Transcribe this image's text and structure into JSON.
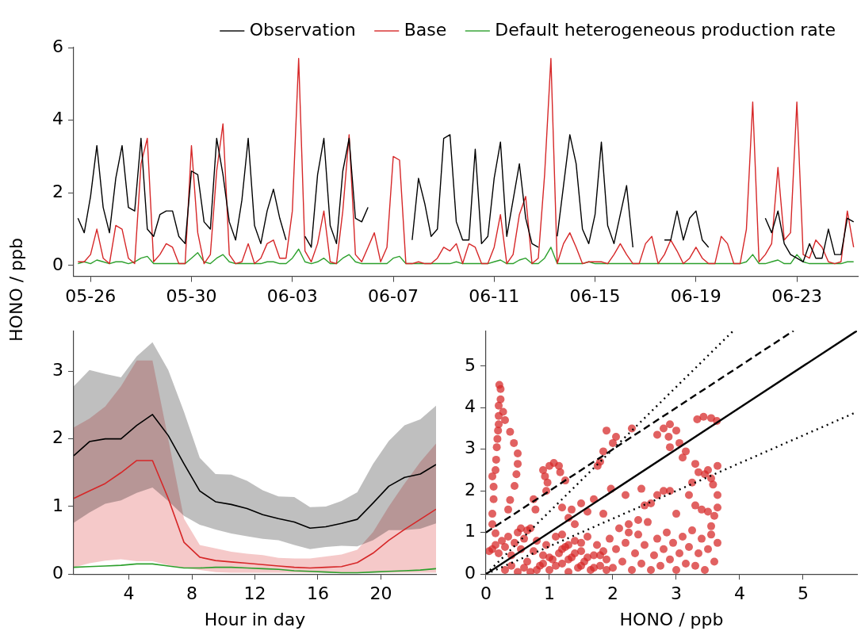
{
  "chart_data": [
    {
      "type": "line",
      "ylabel": "HONO / ppb",
      "legend": "top",
      "x": [
        "--05-25T12:00",
        "--05-25T18:00",
        "--05-26T00:00",
        "--05-26T06:00",
        "--05-26T12:00",
        "--05-26T18:00",
        "--05-27T00:00",
        "--05-27T06:00",
        "--05-27T12:00",
        "--05-27T18:00",
        "--05-28T00:00",
        "--05-28T06:00",
        "--05-28T12:00",
        "--05-28T18:00",
        "--05-29T00:00",
        "--05-29T06:00",
        "--05-29T12:00",
        "--05-29T18:00",
        "--05-30T00:00",
        "--05-30T06:00",
        "--05-30T12:00",
        "--05-30T18:00",
        "--05-31T00:00",
        "--05-31T06:00",
        "--05-31T12:00",
        "--05-31T18:00",
        "--06-01T00:00",
        "--06-01T06:00",
        "--06-01T12:00",
        "--06-01T18:00",
        "--06-02T00:00",
        "--06-02T06:00",
        "--06-02T12:00",
        "--06-02T18:00",
        "--06-03T00:00",
        "--06-03T06:00",
        "--06-03T12:00",
        "--06-03T18:00",
        "--06-04T00:00",
        "--06-04T06:00",
        "--06-04T12:00",
        "--06-04T18:00",
        "--06-05T00:00",
        "--06-05T06:00",
        "--06-05T12:00",
        "--06-05T18:00",
        "--06-06T00:00",
        "--06-06T06:00",
        "--06-06T12:00",
        "--06-06T18:00",
        "--06-07T00:00",
        "--06-07T06:00",
        "--06-07T12:00",
        "--06-07T18:00",
        "--06-08T00:00",
        "--06-08T06:00",
        "--06-08T12:00",
        "--06-08T18:00",
        "--06-09T00:00",
        "--06-09T06:00",
        "--06-09T12:00",
        "--06-09T18:00",
        "--06-10T00:00",
        "--06-10T06:00",
        "--06-10T12:00",
        "--06-10T18:00",
        "--06-11T00:00",
        "--06-11T06:00",
        "--06-11T12:00",
        "--06-11T18:00",
        "--06-12T00:00",
        "--06-12T06:00",
        "--06-12T12:00",
        "--06-12T18:00",
        "--06-13T00:00",
        "--06-13T06:00",
        "--06-13T12:00",
        "--06-13T18:00",
        "--06-14T00:00",
        "--06-14T06:00",
        "--06-14T12:00",
        "--06-14T18:00",
        "--06-15T00:00",
        "--06-15T06:00",
        "--06-15T12:00",
        "--06-15T18:00",
        "--06-16T00:00",
        "--06-16T06:00",
        "--06-16T12:00",
        "--06-16T18:00",
        "--06-17T00:00",
        "--06-17T06:00",
        "--06-17T12:00",
        "--06-17T18:00",
        "--06-18T00:00",
        "--06-18T06:00",
        "--06-18T12:00",
        "--06-18T18:00",
        "--06-19T00:00",
        "--06-19T06:00",
        "--06-19T12:00",
        "--06-19T18:00",
        "--06-20T00:00",
        "--06-20T06:00",
        "--06-20T12:00",
        "--06-20T18:00",
        "--06-21T00:00",
        "--06-21T06:00",
        "--06-21T12:00",
        "--06-21T18:00",
        "--06-22T00:00",
        "--06-22T06:00",
        "--06-22T12:00",
        "--06-22T18:00",
        "--06-23T00:00",
        "--06-23T06:00",
        "--06-23T12:00",
        "--06-23T18:00",
        "--06-24T00:00",
        "--06-24T06:00",
        "--06-24T12:00",
        "--06-24T18:00",
        "--06-25T00:00",
        "--06-25T06:00"
      ],
      "xlim": [
        "--05-25T08:00",
        "--06-25T10:00"
      ],
      "xticks": [
        {
          "value": "--05-26",
          "label": "05-26"
        },
        {
          "value": "--05-30",
          "label": "05-30"
        },
        {
          "value": "--06-03",
          "label": "06-03"
        },
        {
          "value": "--06-07",
          "label": "06-07"
        },
        {
          "value": "--06-11",
          "label": "06-11"
        },
        {
          "value": "--06-15",
          "label": "06-15"
        },
        {
          "value": "--06-19",
          "label": "06-19"
        },
        {
          "value": "--06-23",
          "label": "06-23"
        }
      ],
      "ylim": [
        -0.3,
        6
      ],
      "yticks": [
        0,
        2,
        4,
        6
      ],
      "series": [
        {
          "name": "Observation",
          "color": "#000000",
          "values": [
            1.3,
            0.9,
            1.9,
            3.3,
            1.6,
            0.9,
            2.4,
            3.3,
            1.6,
            1.5,
            3.5,
            1.0,
            0.8,
            1.4,
            1.5,
            1.5,
            0.8,
            0.6,
            2.6,
            2.5,
            1.2,
            1.0,
            3.5,
            2.5,
            1.2,
            0.7,
            1.8,
            3.5,
            1.1,
            0.6,
            1.5,
            2.1,
            1.3,
            0.7,
            null,
            null,
            0.8,
            0.5,
            2.5,
            3.5,
            1.1,
            0.6,
            2.6,
            3.5,
            1.3,
            1.2,
            1.6,
            null,
            null,
            null,
            null,
            null,
            null,
            0.7,
            2.4,
            1.7,
            0.8,
            1.0,
            3.5,
            3.6,
            1.2,
            0.7,
            0.7,
            3.2,
            0.6,
            0.8,
            2.4,
            3.4,
            0.8,
            1.8,
            2.8,
            1.3,
            0.6,
            0.5,
            null,
            null,
            0.8,
            2.2,
            3.6,
            2.8,
            1.0,
            0.6,
            1.4,
            3.4,
            1.1,
            0.6,
            1.4,
            2.2,
            0.5,
            null,
            null,
            null,
            null,
            0.7,
            0.7,
            1.5,
            0.7,
            1.3,
            1.5,
            0.7,
            0.5,
            null,
            null,
            null,
            null,
            null,
            null,
            null,
            null,
            1.3,
            0.9,
            1.5,
            0.6,
            0.3,
            0.2,
            0.1,
            0.6,
            0.2,
            0.2,
            1.0,
            0.3,
            0.3,
            1.3,
            1.2
          ]
        },
        {
          "name": "Base",
          "color": "#d62728",
          "values": [
            0.1,
            0.1,
            0.3,
            1.0,
            0.2,
            0.05,
            1.1,
            1.0,
            0.2,
            0.05,
            2.8,
            3.5,
            0.1,
            0.3,
            0.6,
            0.5,
            0.05,
            0.05,
            3.3,
            0.9,
            0.05,
            0.3,
            2.6,
            3.9,
            0.3,
            0.05,
            0.1,
            0.6,
            0.05,
            0.2,
            0.6,
            0.7,
            0.2,
            0.2,
            1.5,
            5.7,
            0.4,
            0.1,
            0.6,
            1.5,
            0.1,
            0.05,
            1.5,
            3.6,
            0.3,
            0.1,
            0.5,
            0.9,
            0.1,
            0.5,
            3.0,
            2.9,
            0.05,
            0.05,
            0.1,
            0.05,
            0.05,
            0.2,
            0.5,
            0.4,
            0.6,
            0.05,
            0.6,
            0.5,
            0.05,
            0.05,
            0.5,
            1.4,
            0.05,
            0.3,
            1.4,
            1.9,
            0.05,
            0.2,
            2.5,
            5.7,
            0.05,
            0.6,
            0.9,
            0.5,
            0.05,
            0.1,
            0.1,
            0.1,
            0.05,
            0.3,
            0.6,
            0.3,
            0.05,
            0.05,
            0.6,
            0.8,
            0.05,
            0.3,
            0.7,
            0.4,
            0.05,
            0.2,
            0.5,
            0.2,
            0.05,
            0.05,
            0.8,
            0.6,
            0.05,
            0.05,
            1.0,
            4.5,
            0.1,
            0.3,
            0.6,
            2.7,
            0.7,
            0.9,
            4.5,
            0.3,
            0.2,
            0.7,
            0.5,
            0.1,
            0.05,
            0.1,
            1.5,
            0.5
          ]
        },
        {
          "name": "Default heterogeneous production rate",
          "color": "#2ca02c",
          "values": [
            0.05,
            0.1,
            0.05,
            0.15,
            0.1,
            0.05,
            0.1,
            0.1,
            0.05,
            0.1,
            0.2,
            0.25,
            0.05,
            0.05,
            0.05,
            0.05,
            0.05,
            0.05,
            0.2,
            0.35,
            0.1,
            0.05,
            0.2,
            0.3,
            0.1,
            0.05,
            0.05,
            0.05,
            0.05,
            0.05,
            0.1,
            0.1,
            0.05,
            0.05,
            0.2,
            0.45,
            0.1,
            0.05,
            0.1,
            0.2,
            0.05,
            0.05,
            0.2,
            0.3,
            0.1,
            0.05,
            0.05,
            0.05,
            0.05,
            0.05,
            0.2,
            0.25,
            0.05,
            0.05,
            0.05,
            0.05,
            0.05,
            0.05,
            0.05,
            0.05,
            0.1,
            0.05,
            0.05,
            0.05,
            0.05,
            0.05,
            0.1,
            0.15,
            0.05,
            0.05,
            0.15,
            0.2,
            0.05,
            0.05,
            0.2,
            0.5,
            0.05,
            0.05,
            0.05,
            0.05,
            0.05,
            0.1,
            0.05,
            0.05,
            0.05,
            0.05,
            0.05,
            0.05,
            0.05,
            0.05,
            0.05,
            0.05,
            0.05,
            0.05,
            0.05,
            0.05,
            0.05,
            0.05,
            0.05,
            0.05,
            0.05,
            0.05,
            0.05,
            0.05,
            0.05,
            0.05,
            0.1,
            0.3,
            0.05,
            0.05,
            0.1,
            0.15,
            0.05,
            0.05,
            0.3,
            0.1,
            0.05,
            0.05,
            0.05,
            0.05,
            0.05,
            0.05,
            0.1,
            0.1
          ]
        }
      ]
    },
    {
      "type": "line",
      "xlabel": "Hour in day",
      "x": [
        0.5,
        1.5,
        2.5,
        3.5,
        4.5,
        5.5,
        6.5,
        7.5,
        8.5,
        9.5,
        10.5,
        11.5,
        12.5,
        13.5,
        14.5,
        15.5,
        16.5,
        17.5,
        18.5,
        19.5,
        20.5,
        21.5,
        22.5,
        23.5
      ],
      "xlim": [
        0.5,
        23.5
      ],
      "xticks": [
        4,
        8,
        12,
        16,
        20
      ],
      "ylim": [
        0,
        3.6
      ],
      "yticks": [
        0,
        1,
        2,
        3
      ],
      "series": [
        {
          "color": "#000000",
          "values": [
            1.75,
            1.96,
            2.0,
            2.0,
            2.2,
            2.36,
            2.05,
            1.63,
            1.23,
            1.07,
            1.03,
            0.97,
            0.88,
            0.82,
            0.77,
            0.68,
            0.7,
            0.75,
            0.81,
            1.05,
            1.3,
            1.43,
            1.48,
            1.62
          ],
          "lower": [
            0.76,
            0.91,
            1.04,
            1.09,
            1.2,
            1.28,
            1.08,
            0.86,
            0.73,
            0.66,
            0.6,
            0.56,
            0.52,
            0.5,
            0.43,
            0.37,
            0.4,
            0.42,
            0.41,
            0.5,
            0.65,
            0.65,
            0.67,
            0.75
          ],
          "upper": [
            2.78,
            3.02,
            2.96,
            2.91,
            3.22,
            3.43,
            3.02,
            2.4,
            1.72,
            1.48,
            1.47,
            1.38,
            1.24,
            1.15,
            1.14,
            0.99,
            1.0,
            1.08,
            1.21,
            1.63,
            1.97,
            2.2,
            2.29,
            2.49
          ]
        },
        {
          "color": "#d62728",
          "values": [
            1.12,
            1.23,
            1.34,
            1.5,
            1.68,
            1.68,
            1.12,
            0.47,
            0.25,
            0.2,
            0.18,
            0.16,
            0.14,
            0.12,
            0.1,
            0.09,
            0.1,
            0.11,
            0.17,
            0.31,
            0.5,
            0.66,
            0.81,
            0.96
          ],
          "lower": [
            0.1,
            0.16,
            0.2,
            0.22,
            0.19,
            0.19,
            0.13,
            0.09,
            0.06,
            0.03,
            0.02,
            0.02,
            0.02,
            0.02,
            0.02,
            0.02,
            0.02,
            0.02,
            0.02,
            0.02,
            0.02,
            0.02,
            0.02,
            0.02
          ],
          "upper": [
            2.17,
            2.3,
            2.48,
            2.78,
            3.16,
            3.16,
            2.0,
            0.82,
            0.43,
            0.38,
            0.33,
            0.3,
            0.28,
            0.24,
            0.23,
            0.23,
            0.26,
            0.29,
            0.36,
            0.62,
            1.0,
            1.34,
            1.66,
            1.93
          ]
        },
        {
          "color": "#2ca02c",
          "values": [
            0.1,
            0.11,
            0.12,
            0.13,
            0.15,
            0.15,
            0.12,
            0.09,
            0.09,
            0.1,
            0.1,
            0.09,
            0.08,
            0.07,
            0.05,
            0.04,
            0.03,
            0.02,
            0.02,
            0.03,
            0.04,
            0.05,
            0.06,
            0.08
          ]
        }
      ]
    },
    {
      "type": "scatter",
      "xlabel": "HONO / ppb",
      "xlim": [
        0,
        5.85
      ],
      "xticks": [
        0,
        1,
        2,
        3,
        4,
        5
      ],
      "ylim": [
        0,
        5.85
      ],
      "yticks": [
        0,
        1,
        2,
        3,
        4,
        5
      ],
      "series": [
        {
          "color": "#d62728",
          "marker": "circle",
          "x": [
            0.1,
            0.1,
            0.12,
            0.12,
            0.1,
            0.15,
            0.16,
            0.17,
            0.18,
            0.19,
            0.2,
            0.2,
            0.2,
            0.23,
            0.23,
            0.21,
            0.27,
            0.3,
            0.38,
            0.44,
            0.5,
            0.5,
            0.48,
            0.45,
            0.38,
            0.35,
            0.15,
            0.9,
            0.93,
            0.97,
            0.95,
            1.0,
            1.07,
            1.15,
            1.17,
            1.25,
            1.9,
            1.85,
            2.0,
            2.05,
            1.97,
            1.76,
            1.8,
            2.3,
            2.7,
            2.8,
            2.9,
            2.88,
            2.9,
            3.0,
            3.05,
            3.1,
            3.15,
            2.9,
            2.8,
            2.7,
            3.0,
            3.33,
            3.43,
            3.55,
            3.64,
            3.3,
            3.35,
            3.45,
            3.5,
            3.55,
            3.58,
            3.65,
            3.65,
            3.65,
            3.6,
            3.55,
            3.5,
            3.4,
            3.3,
            3.2,
            3.25,
            0.05,
            0.1,
            0.15,
            0.2,
            0.25,
            0.3,
            0.35,
            0.4,
            0.45,
            0.5,
            0.55,
            0.6,
            0.65,
            0.7,
            0.75,
            0.8,
            0.85,
            0.9,
            0.95,
            1.0,
            1.05,
            1.1,
            1.15,
            1.2,
            1.25,
            1.3,
            1.35,
            1.4,
            1.45,
            1.5,
            1.55,
            1.6,
            1.65,
            1.7,
            1.75,
            1.8,
            1.85,
            1.9,
            1.95,
            2.0,
            2.05,
            2.1,
            2.15,
            2.2,
            2.25,
            2.3,
            2.35,
            2.4,
            2.45,
            2.5,
            2.55,
            2.6,
            2.65,
            2.7,
            2.75,
            2.8,
            2.85,
            2.9,
            2.95,
            3.0,
            3.05,
            3.1,
            3.15,
            3.2,
            3.25,
            3.3,
            3.35,
            3.4,
            3.45,
            3.5,
            3.55,
            3.6,
            3.65,
            0.3,
            0.4,
            0.5,
            0.6,
            0.7,
            0.8,
            0.9,
            1.0,
            1.1,
            1.2,
            1.3,
            1.4,
            1.5,
            1.6,
            1.7,
            1.8,
            1.9,
            1.5,
            1.3,
            1.2,
            1.4,
            1.6,
            1.7,
            1.5,
            1.3,
            1.2,
            1.35,
            1.85,
            2.25,
            2.4,
            2.5,
            2.2,
            2.6,
            2.45,
            0.75,
            0.78,
            0.65,
            0.55
          ],
          "values": [
            1.2,
            1.45,
            1.8,
            2.1,
            2.35,
            2.5,
            2.75,
            3.05,
            3.25,
            3.45,
            3.6,
            3.8,
            4.05,
            4.2,
            4.45,
            4.55,
            3.9,
            3.7,
            3.42,
            3.15,
            2.9,
            2.65,
            2.4,
            2.12,
            1.78,
            1.55,
            0.98,
            2.5,
            2.35,
            2.2,
            2.0,
            2.6,
            2.67,
            2.6,
            2.45,
            2.25,
            3.45,
            2.95,
            3.15,
            3.3,
            2.05,
            2.6,
            2.7,
            3.5,
            3.35,
            3.5,
            3.6,
            3.3,
            3.05,
            3.45,
            3.15,
            2.8,
            2.95,
            2.0,
            2.0,
            1.9,
            1.45,
            3.72,
            3.78,
            3.75,
            3.68,
            2.65,
            2.45,
            2.4,
            2.5,
            2.3,
            2.15,
            2.6,
            1.9,
            1.6,
            1.4,
            1.15,
            1.5,
            1.55,
            1.65,
            1.9,
            2.2,
            0.55,
            0.6,
            0.7,
            0.5,
            0.8,
            0.65,
            0.9,
            0.45,
            0.75,
            1.0,
            0.6,
            0.85,
            0.3,
            1.1,
            0.55,
            0.8,
            0.2,
            0.45,
            0.7,
            0.1,
            0.35,
            0.9,
            0.5,
            0.25,
            0.65,
            0.05,
            0.4,
            0.8,
            0.15,
            0.55,
            0.3,
            0.9,
            0.1,
            0.45,
            0.7,
            0.2,
            0.55,
            0.35,
            0.85,
            0.15,
            0.6,
            1.1,
            0.3,
            0.75,
            1.2,
            0.1,
            0.5,
            0.95,
            0.25,
            0.7,
            1.25,
            0.1,
            0.45,
            0.85,
            0.2,
            0.6,
            1.0,
            0.35,
            0.75,
            0.1,
            0.5,
            0.9,
            0.25,
            0.65,
            1.05,
            0.2,
            0.5,
            0.85,
            0.1,
            0.6,
            0.95,
            0.3,
            0.75,
            0.1,
            0.2,
            0.05,
            0.15,
            0.05,
            0.1,
            0.25,
            0.4,
            0.2,
            0.6,
            0.35,
            0.5,
            0.2,
            0.4,
            0.15,
            0.45,
            0.1,
            0.75,
            0.7,
            0.95,
            1.2,
            1.5,
            1.8,
            1.7,
            1.35,
            1.6,
            1.55,
            1.45,
            1.0,
            1.3,
            1.65,
            1.9,
            1.7,
            2.05,
            1.8,
            1.55,
            1.05,
            1.1
          ]
        },
        {
          "type": "line",
          "color": "#000000",
          "line_style": "solid",
          "x": [
            0,
            5.85
          ],
          "values": [
            0,
            5.85
          ]
        },
        {
          "type": "line",
          "color": "#000000",
          "line_style": "dashed",
          "x": [
            0,
            4.85
          ],
          "values": [
            1,
            5.85
          ]
        },
        {
          "type": "line",
          "color": "#000000",
          "line_style": "dotted",
          "x": [
            0,
            3.9
          ],
          "values": [
            0,
            5.85
          ]
        },
        {
          "type": "line",
          "color": "#000000",
          "line_style": "dotted",
          "x": [
            0,
            5.85
          ],
          "values": [
            0,
            3.9
          ]
        }
      ]
    }
  ]
}
